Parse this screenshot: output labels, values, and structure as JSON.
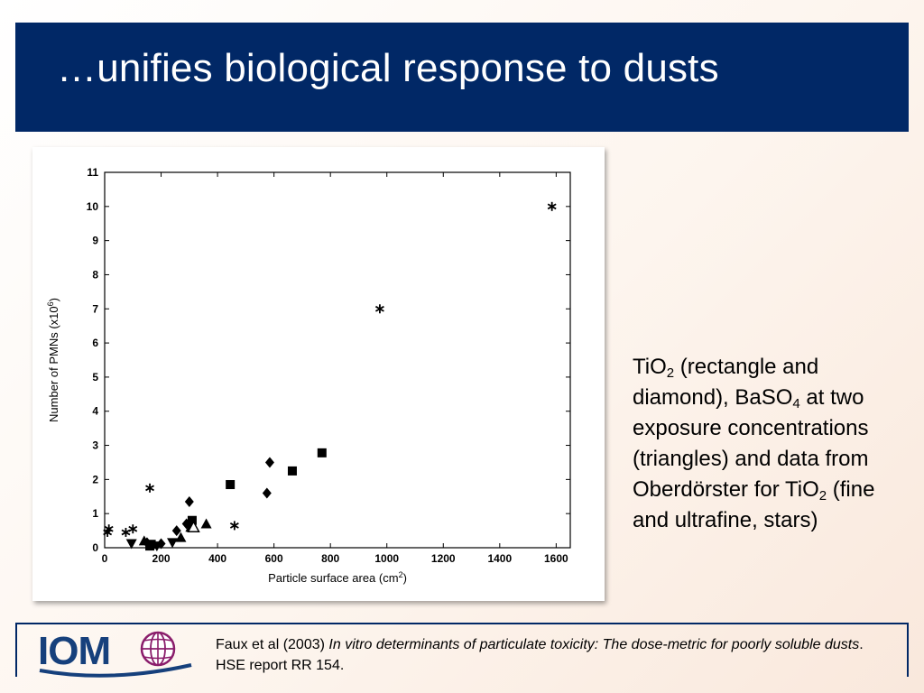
{
  "slide": {
    "title": "…unifies biological response to dusts"
  },
  "side_text": {
    "p1": "TiO",
    "p1_sub": "2",
    "p2": " (rectangle and diamond), BaSO",
    "p2_sub": "4",
    "p3": " at two exposure concentrations (triangles) and data from Oberdörster for TiO",
    "p3_sub": "2",
    "p4": " (fine and ultrafine, stars)"
  },
  "footer": {
    "logo_text": "IOM",
    "citation_authors": "Faux et al (2003) ",
    "citation_title": "In vitro determinants of particulate toxicity: The dose-metric for poorly soluble dusts",
    "citation_source": ". HSE report RR 154."
  },
  "chart_data": {
    "type": "scatter",
    "xlabel": "Particle surface area (cm",
    "xlabel_sup": "2",
    "xlabel_end": ")",
    "ylabel": "Number of PMNs (x10",
    "ylabel_sup": "6",
    "ylabel_end": ")",
    "xlim": [
      0,
      1650
    ],
    "ylim": [
      0,
      11
    ],
    "xticks": [
      0,
      200,
      400,
      600,
      800,
      1000,
      1200,
      1400,
      1600
    ],
    "yticks": [
      0,
      1,
      2,
      3,
      4,
      5,
      6,
      7,
      8,
      9,
      10,
      11
    ],
    "grid": false,
    "series": [
      {
        "marker": "square",
        "points": [
          [
            160,
            0.05
          ],
          [
            165,
            0.1
          ],
          [
            310,
            0.8
          ],
          [
            445,
            1.85
          ],
          [
            665,
            2.25
          ],
          [
            770,
            2.78
          ]
        ]
      },
      {
        "marker": "diamond",
        "points": [
          [
            150,
            0.15
          ],
          [
            200,
            0.12
          ],
          [
            255,
            0.5
          ],
          [
            290,
            0.7
          ],
          [
            300,
            1.35
          ],
          [
            575,
            1.6
          ],
          [
            585,
            2.5
          ]
        ]
      },
      {
        "marker": "triangle-up",
        "points": [
          [
            140,
            0.2
          ],
          [
            270,
            0.3
          ],
          [
            305,
            0.6
          ],
          [
            360,
            0.7
          ]
        ]
      },
      {
        "marker": "triangle-up-open",
        "points": [
          [
            315,
            0.6
          ]
        ]
      },
      {
        "marker": "triangle-down",
        "points": [
          [
            95,
            0.12
          ],
          [
            185,
            0.05
          ],
          [
            240,
            0.15
          ]
        ]
      },
      {
        "marker": "star",
        "points": [
          [
            10,
            0.45
          ],
          [
            15,
            0.55
          ],
          [
            75,
            0.45
          ],
          [
            100,
            0.55
          ],
          [
            160,
            1.75
          ],
          [
            460,
            0.65
          ],
          [
            975,
            7.0
          ],
          [
            1585,
            10.0
          ]
        ]
      }
    ]
  }
}
